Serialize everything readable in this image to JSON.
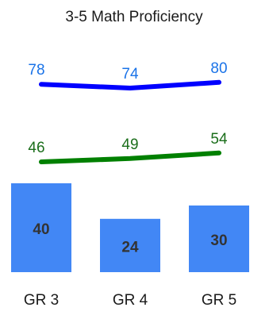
{
  "chart_data": {
    "type": "bar",
    "title": "3-5 Math Proficiency",
    "categories": [
      "GR 3",
      "GR 4",
      "GR 5"
    ],
    "bars": {
      "values": [
        40,
        24,
        30
      ],
      "color": "#4287f5",
      "label_color": "#333333"
    },
    "lines": [
      {
        "values": [
          78,
          74,
          80
        ],
        "color": "#0000ff",
        "label_color": "#1a73e8"
      },
      {
        "values": [
          46,
          49,
          54
        ],
        "color": "#008000",
        "label_color": "#1b6e1b"
      }
    ],
    "legend": "none",
    "grid": false
  }
}
